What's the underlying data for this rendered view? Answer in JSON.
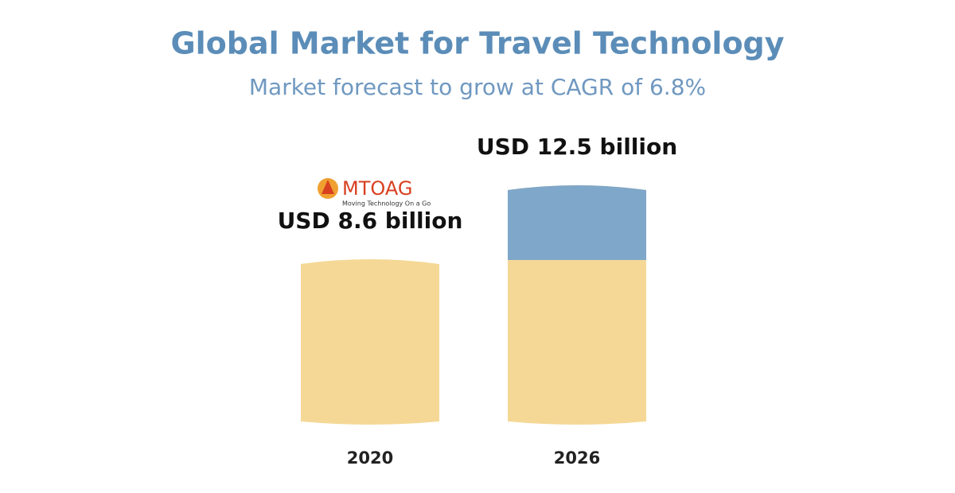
{
  "chart_data": {
    "type": "bar",
    "title": "Global Market for Travel Technology",
    "subtitle": "Market forecast to grow at CAGR of  6.8%",
    "categories": [
      "2020",
      "2026"
    ],
    "values": [
      8.6,
      12.5
    ],
    "value_labels": [
      "USD 8.6 billion",
      "USD 12.5 billion"
    ],
    "color": "#f5d896",
    "growth_color": "#7fa7c9"
  },
  "logo": {
    "name": "MTOAG",
    "tagline": "Moving Technology On a Go"
  }
}
